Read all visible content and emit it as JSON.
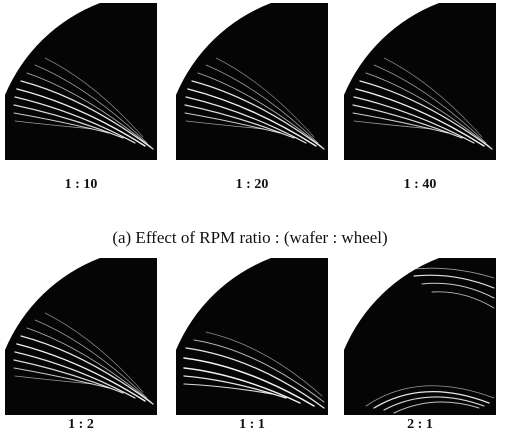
{
  "figure": {
    "rows": [
      {
        "labels": [
          "1 : 10",
          "1 : 20",
          "1 : 40"
        ]
      },
      {
        "labels": [
          "1 : 2",
          "1 : 1",
          "2 : 1"
        ]
      }
    ],
    "caption": "(a) Effect of RPM ratio : (wafer : wheel)"
  }
}
